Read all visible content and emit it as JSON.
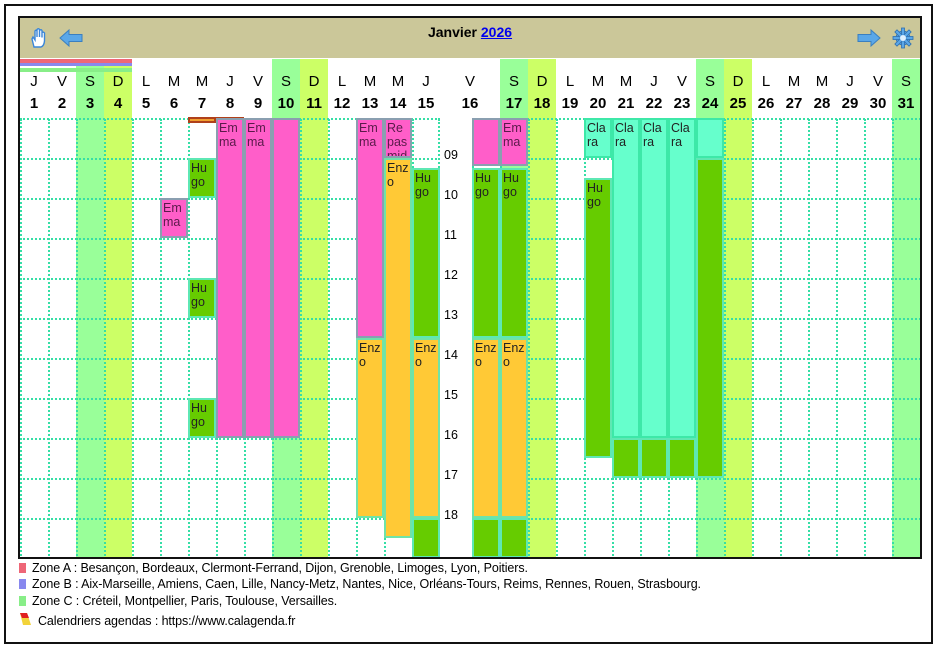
{
  "header": {
    "month": "Janvier",
    "year": "2026"
  },
  "icons": {
    "hand": "hand-icon",
    "prev": "arrow-left-icon",
    "next": "arrow-right-icon",
    "settings": "gear-icon"
  },
  "colors": {
    "saturday": "#99ff99",
    "sunday": "#ccff66",
    "zone_a": "#ee6677",
    "zone_b": "#8888ee",
    "zone_c": "#88ee88",
    "pink": "#ff5ec9",
    "orange": "#ffc936",
    "green": "#66cc00",
    "teal": "#66ffcc",
    "header": "#cbc799"
  },
  "days": [
    {
      "l": "J",
      "n": "1"
    },
    {
      "l": "V",
      "n": "2"
    },
    {
      "l": "S",
      "n": "3"
    },
    {
      "l": "D",
      "n": "4"
    },
    {
      "l": "L",
      "n": "5"
    },
    {
      "l": "M",
      "n": "6"
    },
    {
      "l": "M",
      "n": "7"
    },
    {
      "l": "J",
      "n": "8"
    },
    {
      "l": "V",
      "n": "9"
    },
    {
      "l": "S",
      "n": "10"
    },
    {
      "l": "D",
      "n": "11"
    },
    {
      "l": "L",
      "n": "12"
    },
    {
      "l": "M",
      "n": "13"
    },
    {
      "l": "M",
      "n": "14"
    },
    {
      "l": "J",
      "n": "15"
    },
    {
      "l": "V",
      "n": "16"
    },
    {
      "l": "S",
      "n": "17"
    },
    {
      "l": "D",
      "n": "18"
    },
    {
      "l": "L",
      "n": "19"
    },
    {
      "l": "M",
      "n": "20"
    },
    {
      "l": "M",
      "n": "21"
    },
    {
      "l": "J",
      "n": "22"
    },
    {
      "l": "V",
      "n": "23"
    },
    {
      "l": "S",
      "n": "24"
    },
    {
      "l": "D",
      "n": "25"
    },
    {
      "l": "L",
      "n": "26"
    },
    {
      "l": "M",
      "n": "27"
    },
    {
      "l": "M",
      "n": "28"
    },
    {
      "l": "J",
      "n": "29"
    },
    {
      "l": "V",
      "n": "30"
    },
    {
      "l": "S",
      "n": "31"
    }
  ],
  "hours": [
    "09",
    "10",
    "11",
    "12",
    "13",
    "14",
    "15",
    "16",
    "17",
    "18"
  ],
  "zone_holidays_days": [
    1,
    2,
    3,
    4
  ],
  "markers": [
    {
      "day": 7
    },
    {
      "day": 8
    }
  ],
  "events": [
    {
      "day": 6,
      "start": 10,
      "end": 11,
      "color": "pink",
      "label": "Emma"
    },
    {
      "day": 7,
      "start": 9,
      "end": 10,
      "color": "green",
      "label": "Hugo"
    },
    {
      "day": 7,
      "start": 12,
      "end": 13,
      "color": "green",
      "label": "Hugo"
    },
    {
      "day": 7,
      "start": 15,
      "end": 16,
      "color": "green",
      "label": "Hugo"
    },
    {
      "day": 8,
      "start": 8,
      "end": 16,
      "color": "pink",
      "label": "Emma"
    },
    {
      "day": 9,
      "start": 8,
      "end": 16,
      "color": "pink",
      "label": "Emma"
    },
    {
      "day": 10,
      "start": 8,
      "end": 16,
      "color": "pink",
      "label": ""
    },
    {
      "day": 13,
      "start": 8,
      "end": 13.5,
      "color": "pink",
      "label": "Emma"
    },
    {
      "day": 13,
      "start": 13.5,
      "end": 18,
      "color": "orange",
      "label": "Enzo"
    },
    {
      "day": 14,
      "start": 8,
      "end": 9,
      "color": "pink",
      "label": "Repas midi"
    },
    {
      "day": 14,
      "start": 9,
      "end": 18.5,
      "color": "orange",
      "label": "Enzo"
    },
    {
      "day": 15,
      "start": 9.25,
      "end": 13.5,
      "color": "green",
      "label": "Hugo"
    },
    {
      "day": 15,
      "start": 13.5,
      "end": 18,
      "color": "orange",
      "label": "Enzo"
    },
    {
      "day": 15,
      "start": 18,
      "end": 19,
      "color": "green",
      "label": ""
    },
    {
      "day": 16,
      "start": 8,
      "end": 9.2,
      "color": "pink",
      "label": ""
    },
    {
      "day": 16,
      "start": 9.25,
      "end": 13.5,
      "color": "green",
      "label": "Hugo"
    },
    {
      "day": 16,
      "start": 13.5,
      "end": 18,
      "color": "orange",
      "label": "Enzo"
    },
    {
      "day": 16,
      "start": 18,
      "end": 19,
      "color": "green",
      "label": ""
    },
    {
      "day": 17,
      "start": 8,
      "end": 9.2,
      "color": "pink",
      "label": "Emma"
    },
    {
      "day": 17,
      "start": 9.25,
      "end": 13.5,
      "color": "green",
      "label": "Hugo"
    },
    {
      "day": 17,
      "start": 13.5,
      "end": 18,
      "color": "orange",
      "label": "Enzo"
    },
    {
      "day": 17,
      "start": 18,
      "end": 19,
      "color": "green",
      "label": ""
    },
    {
      "day": 20,
      "start": 8,
      "end": 9,
      "color": "teal",
      "label": "Clara"
    },
    {
      "day": 20,
      "start": 9.5,
      "end": 16.5,
      "color": "green",
      "label": "Hugo"
    },
    {
      "day": 21,
      "start": 8,
      "end": 16,
      "color": "teal",
      "label": "Clara"
    },
    {
      "day": 21,
      "start": 16,
      "end": 17,
      "color": "green",
      "label": ""
    },
    {
      "day": 22,
      "start": 8,
      "end": 16,
      "color": "teal",
      "label": "Clara"
    },
    {
      "day": 22,
      "start": 16,
      "end": 17,
      "color": "green",
      "label": ""
    },
    {
      "day": 23,
      "start": 8,
      "end": 16,
      "color": "teal",
      "label": "Clara"
    },
    {
      "day": 23,
      "start": 16,
      "end": 17,
      "color": "green",
      "label": ""
    },
    {
      "day": 24,
      "start": 8,
      "end": 9,
      "color": "teal",
      "label": ""
    },
    {
      "day": 24,
      "start": 9,
      "end": 17,
      "color": "green",
      "label": ""
    }
  ],
  "legend": {
    "zone_a": "Zone A : Besançon, Bordeaux, Clermont-Ferrand, Dijon, Grenoble, Limoges, Lyon, Poitiers.",
    "zone_b": "Zone B : Aix-Marseille, Amiens, Caen, Lille, Nancy-Metz, Nantes, Nice, Orléans-Tours, Reims, Rennes, Rouen, Strasbourg.",
    "zone_c": "Zone C : Créteil, Montpellier, Paris, Toulouse, Versailles.",
    "credit": "Calendriers agendas : https://www.calagenda.fr"
  }
}
